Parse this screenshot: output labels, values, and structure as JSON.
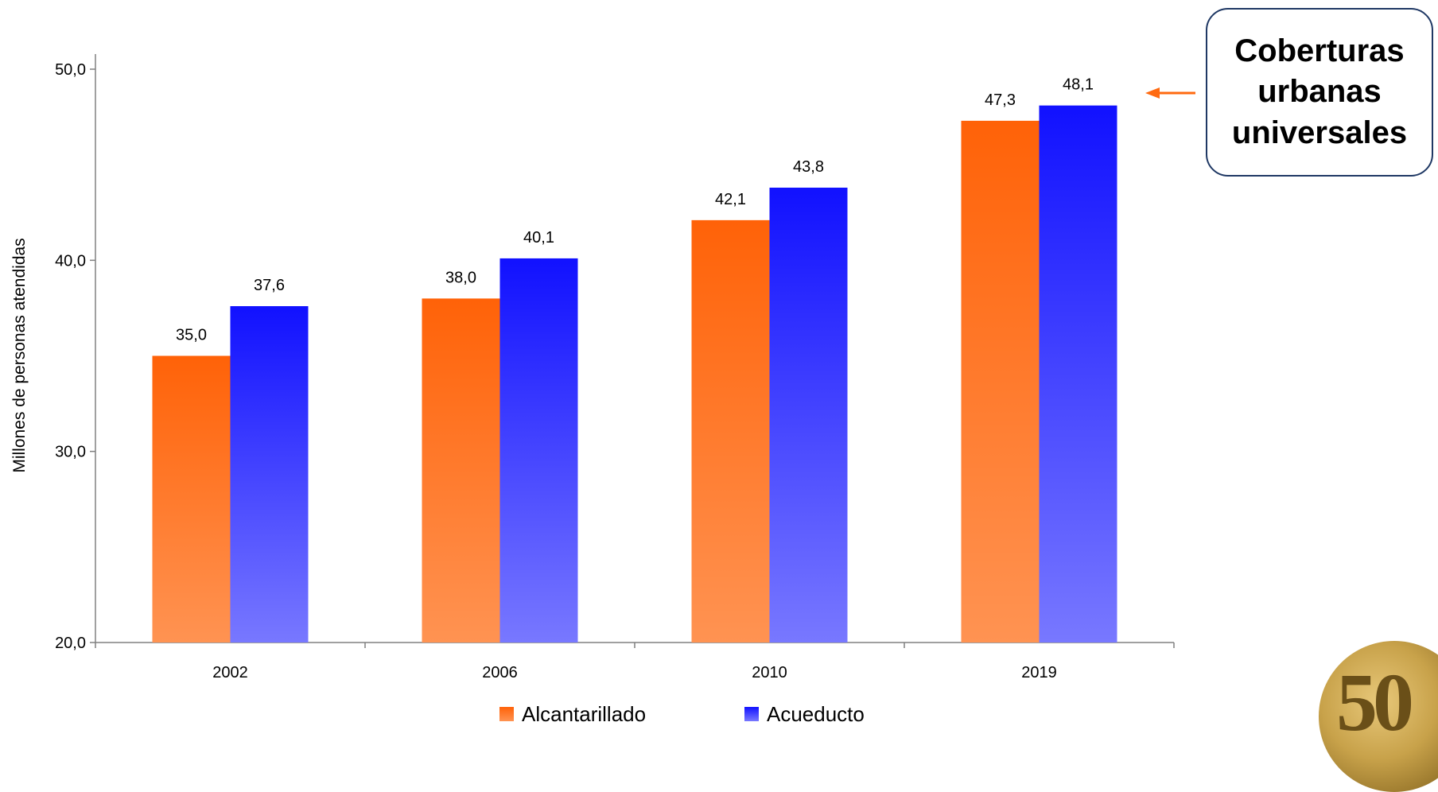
{
  "chart_data": {
    "type": "bar",
    "categories": [
      "2002",
      "2006",
      "2010",
      "2019"
    ],
    "series": [
      {
        "name": "Alcantarillado",
        "values": [
          35.0,
          38.0,
          42.1,
          47.3
        ],
        "labels": [
          "35,0",
          "38,0",
          "42,1",
          "47,3"
        ],
        "color": "#ff6a10"
      },
      {
        "name": "Acueducto",
        "values": [
          37.6,
          40.1,
          43.8,
          48.1
        ],
        "labels": [
          "37,6",
          "40,1",
          "43,8",
          "48,1"
        ],
        "color": "#1414ff"
      }
    ],
    "ylabel": "Millones de personas atendidas",
    "xlabel": "",
    "ylim": [
      20,
      50
    ],
    "yticks": [
      20,
      30,
      40,
      50
    ],
    "ytick_labels": [
      "20,0",
      "30,0",
      "40,0",
      "50,0"
    ],
    "grid": false,
    "legend_position": "bottom"
  },
  "callout": {
    "text": "Coberturas urbanas universales",
    "arrow_color": "#ff6a10"
  },
  "logo": {
    "text": "50"
  }
}
